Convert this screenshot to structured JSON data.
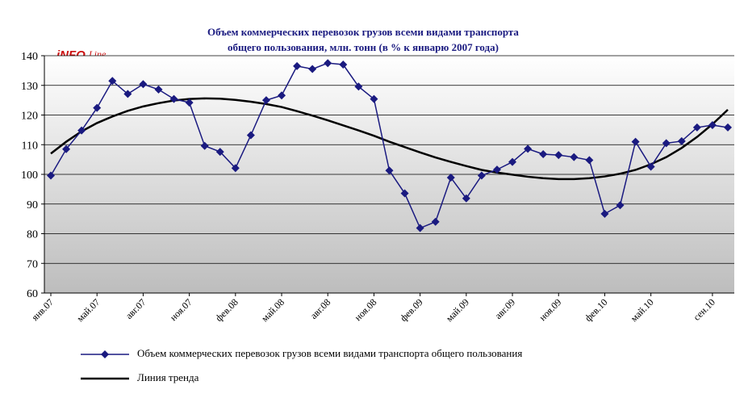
{
  "chart_data": {
    "type": "line",
    "title_line1": "Объем коммерческих перевозок грузов всеми видами транспорта",
    "title_line2": "общего пользования, млн. тонн (в % к январю 2007 года)",
    "ylim": [
      60,
      140
    ],
    "yticks": [
      60,
      70,
      80,
      90,
      100,
      110,
      120,
      130,
      140
    ],
    "xtick_labels": [
      "янв.07",
      "май.07",
      "авг.07",
      "ноя.07",
      "фев.08",
      "май.08",
      "авг.08",
      "ноя.08",
      "фев.09",
      "май.09",
      "авг.09",
      "ноя.09",
      "фев.10",
      "май.10",
      "сен.10"
    ],
    "xtick_indices": [
      0,
      3,
      6,
      9,
      12,
      15,
      18,
      21,
      24,
      27,
      30,
      33,
      36,
      39,
      43
    ],
    "grid": true,
    "legend_position": "bottom",
    "series": [
      {
        "name": "Объем коммерческих перевозок грузов всеми видами транспорта общего пользования",
        "color": "#1a1a80",
        "marker": "diamond",
        "values": [
          99.6,
          108.5,
          114.8,
          122.4,
          131.5,
          127.1,
          130.4,
          128.6,
          125.4,
          124.2,
          109.6,
          107.6,
          102.1,
          113.2,
          125.0,
          126.6,
          136.5,
          135.5,
          137.5,
          137.0,
          129.6,
          125.4,
          101.3,
          93.6,
          81.9,
          84.0,
          98.9,
          91.9,
          99.6,
          101.6,
          104.2,
          108.6,
          106.8,
          106.5,
          105.8,
          104.8,
          86.7,
          89.6,
          111.0,
          102.6,
          110.5,
          111.2,
          115.8,
          116.6,
          115.8
        ]
      },
      {
        "name": "Линия тренда",
        "color": "#000000",
        "values": [
          107.0,
          111.0,
          114.5,
          117.3,
          119.5,
          121.4,
          122.9,
          124.0,
          124.9,
          125.4,
          125.6,
          125.5,
          125.1,
          124.5,
          123.7,
          122.7,
          121.3,
          119.8,
          118.2,
          116.5,
          114.8,
          113.0,
          111.0,
          109.2,
          107.4,
          105.7,
          104.2,
          102.8,
          101.5,
          100.6,
          99.9,
          99.2,
          98.7,
          98.4,
          98.4,
          98.7,
          99.3,
          100.2,
          101.5,
          103.4,
          105.8,
          108.9,
          112.6,
          116.9,
          121.8
        ]
      }
    ],
    "legend": [
      "Объем коммерческих перевозок грузов всеми видами транспорта общего пользования",
      "Линия тренда"
    ],
    "logo_text": "INFOLine"
  },
  "colors": {
    "data_series": "#1a1a80",
    "trend": "#000000",
    "title": "#1a1a80",
    "plot_bg_top": "#ffffff",
    "plot_bg_bottom": "#bdbdbd",
    "logo_red": "#cc1111"
  }
}
